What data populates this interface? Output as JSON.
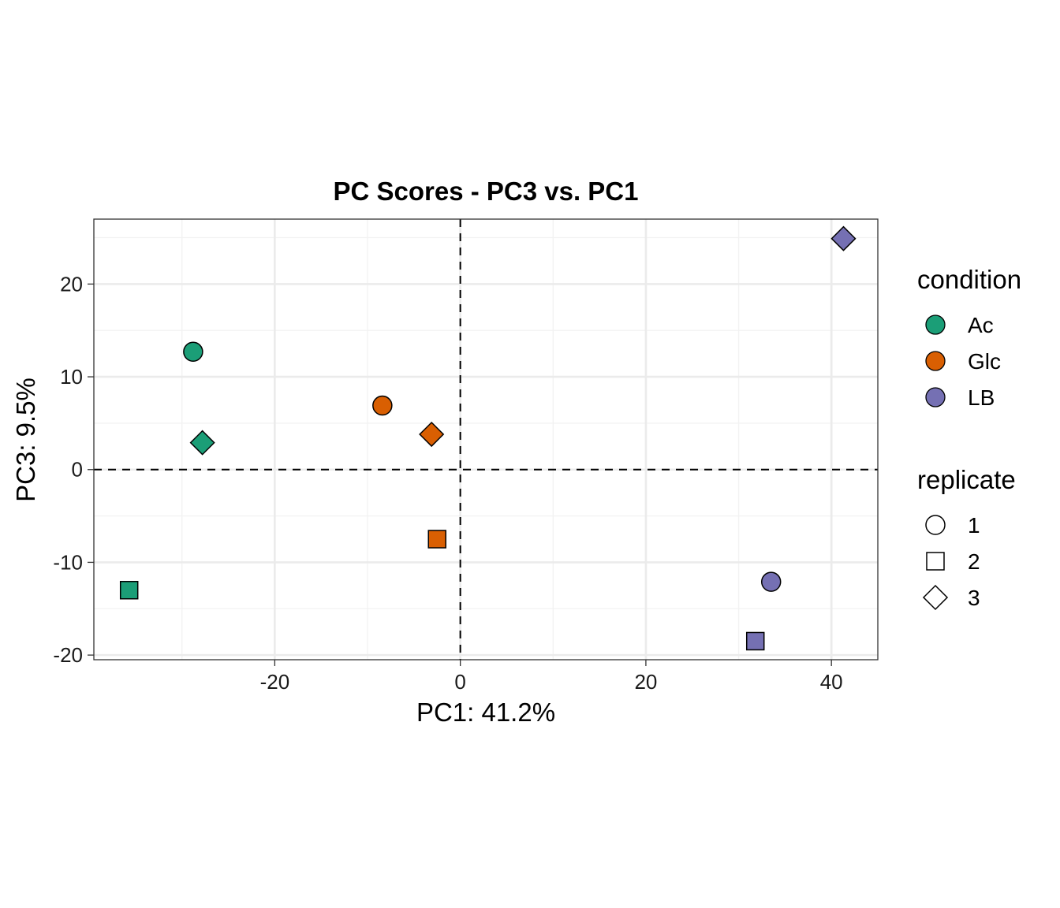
{
  "chart_data": {
    "type": "scatter",
    "title": "PC Scores - PC3 vs. PC1",
    "xlabel": "PC1: 41.2%",
    "ylabel": "PC3: 9.5%",
    "xlim": [
      -39.5,
      45.0
    ],
    "ylim": [
      -20.5,
      27.0
    ],
    "x_ticks": [
      -20,
      0,
      20,
      40
    ],
    "y_ticks": [
      -20,
      -10,
      0,
      10,
      20
    ],
    "grid": true,
    "reference_lines": {
      "x": 0,
      "y": 0,
      "style": "dashed"
    },
    "legend_position": "right",
    "legends": [
      {
        "title": "condition",
        "entries": [
          {
            "label": "Ac",
            "color": "#1b9e77"
          },
          {
            "label": "Glc",
            "color": "#d95f02"
          },
          {
            "label": "LB",
            "color": "#7570b3"
          }
        ]
      },
      {
        "title": "replicate",
        "entries": [
          {
            "label": "1",
            "shape": "circle"
          },
          {
            "label": "2",
            "shape": "square"
          },
          {
            "label": "3",
            "shape": "diamond"
          }
        ]
      }
    ],
    "points": [
      {
        "condition": "Ac",
        "replicate": "1",
        "x": -28.8,
        "y": 12.7
      },
      {
        "condition": "Ac",
        "replicate": "2",
        "x": -35.7,
        "y": -13.0
      },
      {
        "condition": "Ac",
        "replicate": "3",
        "x": -27.8,
        "y": 2.9
      },
      {
        "condition": "Glc",
        "replicate": "1",
        "x": -8.4,
        "y": 6.9
      },
      {
        "condition": "Glc",
        "replicate": "2",
        "x": -2.5,
        "y": -7.5
      },
      {
        "condition": "Glc",
        "replicate": "3",
        "x": -3.1,
        "y": 3.8
      },
      {
        "condition": "LB",
        "replicate": "1",
        "x": 33.5,
        "y": -12.1
      },
      {
        "condition": "LB",
        "replicate": "2",
        "x": 31.8,
        "y": -18.5
      },
      {
        "condition": "LB",
        "replicate": "3",
        "x": 41.3,
        "y": 24.9
      }
    ]
  }
}
